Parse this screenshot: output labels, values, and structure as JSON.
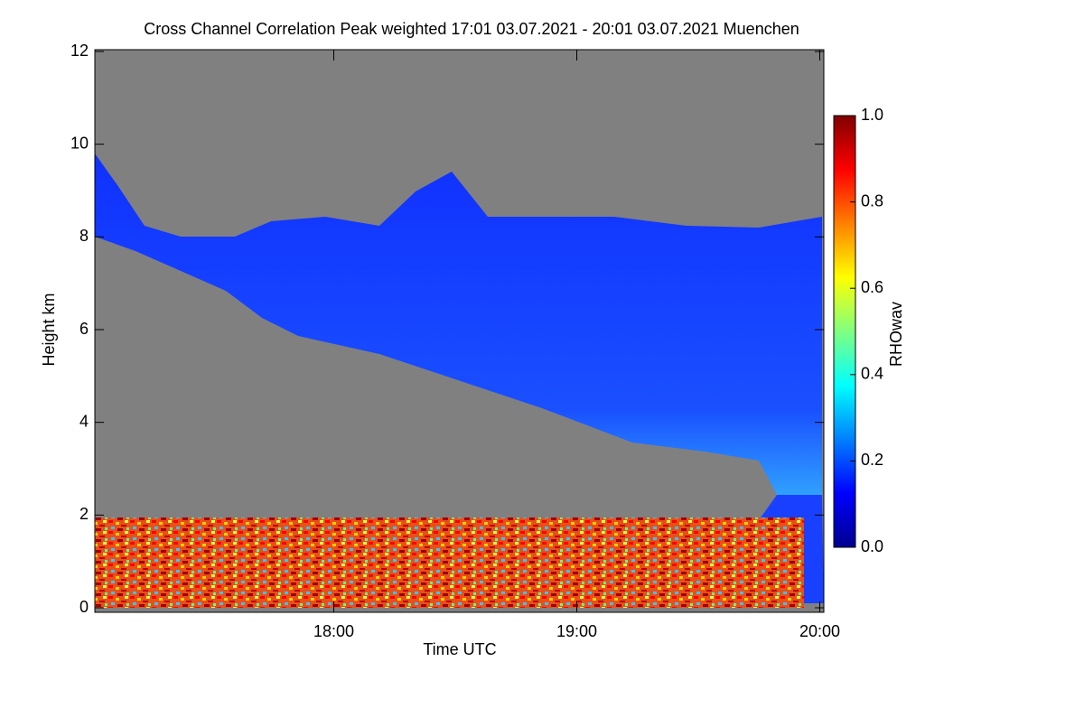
{
  "chart_data": {
    "type": "heatmap",
    "title": "Cross Channel Correlation Peak weighted   17:01 03.07.2021 - 20:01 03.07.2021 Muenchen",
    "xlabel": "Time UTC",
    "ylabel": "Height km",
    "xlim": [
      17.0167,
      20.0167
    ],
    "xticks": [
      {
        "value": 18,
        "label": "18:00"
      },
      {
        "value": 19,
        "label": "19:00"
      },
      {
        "value": 20,
        "label": "20:00"
      }
    ],
    "ylim": [
      0,
      12
    ],
    "yticks": [
      0,
      2,
      4,
      6,
      8,
      10,
      12
    ],
    "colorbar": {
      "label": "RHOwav",
      "lim": [
        0,
        1
      ],
      "ticks": [
        {
          "value": 0,
          "label": "0.0"
        },
        0.2,
        0.4,
        0.6,
        0.8,
        {
          "value": 1,
          "label": "1.0"
        }
      ],
      "colormap": [
        "#00008f",
        "#0000ff",
        "#0080ff",
        "#00ffff",
        "#80ff80",
        "#ffff00",
        "#ff8000",
        "#ff0000",
        "#800000"
      ]
    }
  }
}
